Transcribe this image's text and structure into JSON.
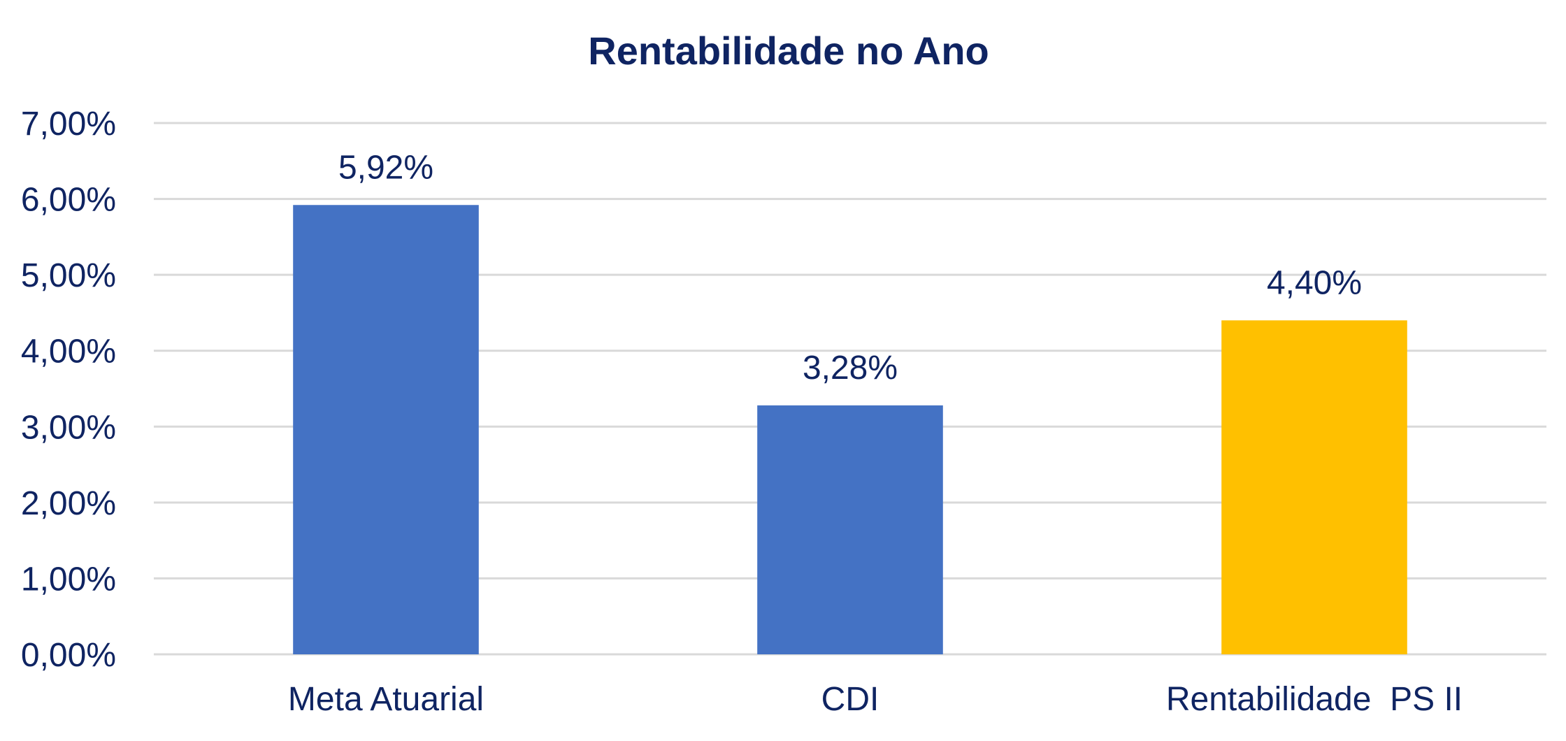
{
  "chart_data": {
    "type": "bar",
    "title": "Rentabilidade no Ano",
    "xlabel": "",
    "ylabel": "",
    "categories": [
      "Meta Atuarial",
      "CDI",
      "Rentabilidade  PS II"
    ],
    "values": [
      5.92,
      3.28,
      4.4
    ],
    "data_labels": [
      "5,92%",
      "3,28%",
      "4,40%"
    ],
    "bar_colors": [
      "#4472c4",
      "#4472c4",
      "#ffc000"
    ],
    "ylim": [
      0,
      7
    ],
    "y_ticks": [
      0,
      1,
      2,
      3,
      4,
      5,
      6,
      7
    ],
    "y_tick_labels": [
      "0,00%",
      "1,00%",
      "2,00%",
      "3,00%",
      "4,00%",
      "5,00%",
      "6,00%",
      "7,00%"
    ],
    "grid": true,
    "legend": "none"
  },
  "colors": {
    "text": "#0f2462",
    "grid": "#d9d9d9",
    "background": "#ffffff"
  }
}
